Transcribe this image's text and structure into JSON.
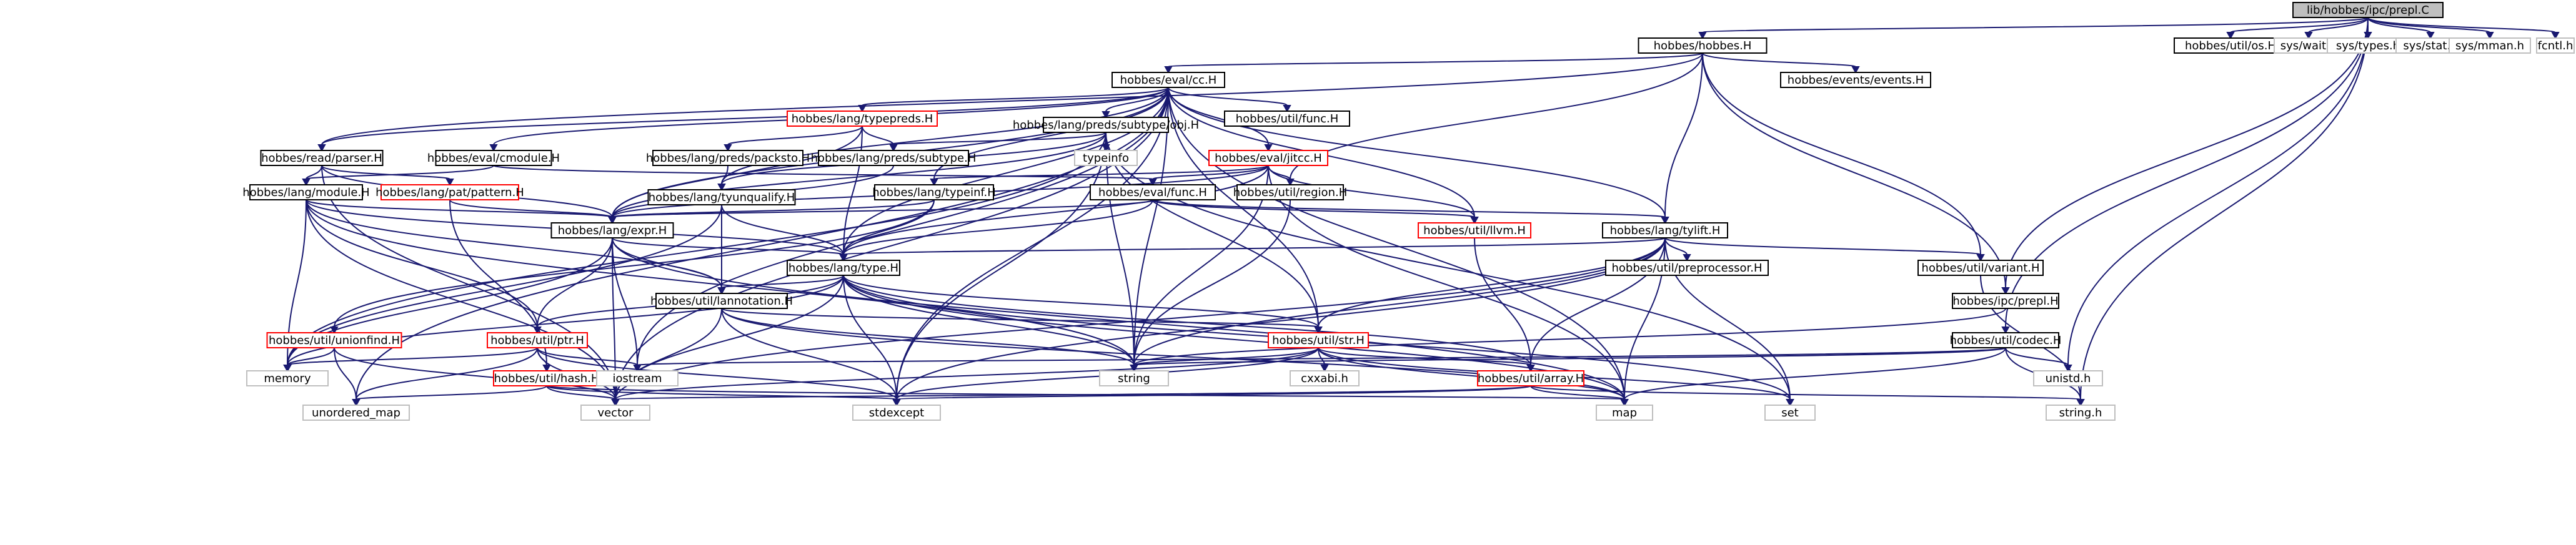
{
  "diagram": {
    "root": "lib/hobbes/ipc/prepl.C",
    "colors": {
      "edge": "#191970",
      "node_border_black": "#000000",
      "node_border_red": "#ff0000",
      "node_border_gray": "#bfbfbf",
      "root_fill": "#bfbfbf",
      "node_fill": "#ffffff"
    },
    "nodes": [
      {
        "id": "n0",
        "label": "lib/hobbes/ipc/prepl.C",
        "style": "root"
      },
      {
        "id": "n1",
        "label": "hobbes/hobbes.H",
        "style": "black"
      },
      {
        "id": "n2",
        "label": "hobbes/util/os.H",
        "style": "black"
      },
      {
        "id": "n3",
        "label": "sys/wait.h",
        "style": "gray"
      },
      {
        "id": "n4",
        "label": "sys/types.h",
        "style": "gray"
      },
      {
        "id": "n5",
        "label": "sys/stat.h",
        "style": "gray"
      },
      {
        "id": "n6",
        "label": "sys/mman.h",
        "style": "gray"
      },
      {
        "id": "n7",
        "label": "fcntl.h",
        "style": "gray"
      },
      {
        "id": "n8",
        "label": "hobbes/eval/cc.H",
        "style": "black"
      },
      {
        "id": "n9",
        "label": "hobbes/events/events.H",
        "style": "black"
      },
      {
        "id": "n10",
        "label": "hobbes/lang/typepreds.H",
        "style": "red"
      },
      {
        "id": "n11",
        "label": "hobbes/lang/preds/subtype/obj.H",
        "style": "black"
      },
      {
        "id": "n12",
        "label": "hobbes/util/func.H",
        "style": "black"
      },
      {
        "id": "n13",
        "label": "hobbes/read/parser.H",
        "style": "black"
      },
      {
        "id": "n14",
        "label": "hobbes/eval/cmodule.H",
        "style": "black"
      },
      {
        "id": "n15",
        "label": "hobbes/lang/preds/packsto.H",
        "style": "black"
      },
      {
        "id": "n16",
        "label": "hobbes/lang/preds/subtype.H",
        "style": "black"
      },
      {
        "id": "n17",
        "label": "typeinfo",
        "style": "gray"
      },
      {
        "id": "n18",
        "label": "hobbes/eval/jitcc.H",
        "style": "red"
      },
      {
        "id": "n19",
        "label": "hobbes/lang/module.H",
        "style": "black"
      },
      {
        "id": "n20",
        "label": "hobbes/lang/pat/pattern.H",
        "style": "red"
      },
      {
        "id": "n21",
        "label": "hobbes/lang/tyunqualify.H",
        "style": "black"
      },
      {
        "id": "n22",
        "label": "hobbes/lang/typeinf.H",
        "style": "black"
      },
      {
        "id": "n23",
        "label": "hobbes/eval/func.H",
        "style": "black"
      },
      {
        "id": "n24",
        "label": "hobbes/util/region.H",
        "style": "black"
      },
      {
        "id": "n25",
        "label": "hobbes/util/llvm.H",
        "style": "red"
      },
      {
        "id": "n26",
        "label": "hobbes/lang/expr.H",
        "style": "black"
      },
      {
        "id": "n27",
        "label": "hobbes/lang/tylift.H",
        "style": "black"
      },
      {
        "id": "n28",
        "label": "hobbes/lang/type.H",
        "style": "black"
      },
      {
        "id": "n29",
        "label": "hobbes/util/preprocessor.H",
        "style": "black"
      },
      {
        "id": "n30",
        "label": "hobbes/util/variant.H",
        "style": "black"
      },
      {
        "id": "n31",
        "label": "hobbes/util/lannotation.H",
        "style": "black"
      },
      {
        "id": "n32",
        "label": "hobbes/ipc/prepl.H",
        "style": "black"
      },
      {
        "id": "n33",
        "label": "hobbes/util/unionfind.H",
        "style": "red"
      },
      {
        "id": "n34",
        "label": "hobbes/util/ptr.H",
        "style": "red"
      },
      {
        "id": "n35",
        "label": "hobbes/util/str.H",
        "style": "red"
      },
      {
        "id": "n36",
        "label": "hobbes/util/codec.H",
        "style": "black"
      },
      {
        "id": "n37",
        "label": "hobbes/util/hash.H",
        "style": "red"
      },
      {
        "id": "n38",
        "label": "hobbes/util/array.H",
        "style": "red"
      },
      {
        "id": "n39",
        "label": "memory",
        "style": "gray"
      },
      {
        "id": "n40",
        "label": "iostream",
        "style": "gray"
      },
      {
        "id": "n41",
        "label": "string",
        "style": "gray"
      },
      {
        "id": "n42",
        "label": "cxxabi.h",
        "style": "gray"
      },
      {
        "id": "n43",
        "label": "unistd.h",
        "style": "gray"
      },
      {
        "id": "n44",
        "label": "unordered_map",
        "style": "gray"
      },
      {
        "id": "n45",
        "label": "vector",
        "style": "gray"
      },
      {
        "id": "n46",
        "label": "stdexcept",
        "style": "gray"
      },
      {
        "id": "n47",
        "label": "map",
        "style": "gray"
      },
      {
        "id": "n48",
        "label": "set",
        "style": "gray"
      },
      {
        "id": "n49",
        "label": "string.h",
        "style": "gray"
      }
    ],
    "edges": [
      [
        "n0",
        "n1"
      ],
      [
        "n0",
        "n2"
      ],
      [
        "n0",
        "n3"
      ],
      [
        "n0",
        "n4"
      ],
      [
        "n0",
        "n5"
      ],
      [
        "n0",
        "n6"
      ],
      [
        "n0",
        "n7"
      ],
      [
        "n0",
        "n32"
      ],
      [
        "n0",
        "n36"
      ],
      [
        "n0",
        "n43"
      ],
      [
        "n0",
        "n49"
      ],
      [
        "n1",
        "n8"
      ],
      [
        "n1",
        "n9"
      ],
      [
        "n1",
        "n13"
      ],
      [
        "n1",
        "n24"
      ],
      [
        "n1",
        "n27"
      ],
      [
        "n1",
        "n30"
      ],
      [
        "n1",
        "n32"
      ],
      [
        "n8",
        "n10"
      ],
      [
        "n8",
        "n11"
      ],
      [
        "n8",
        "n12"
      ],
      [
        "n8",
        "n13"
      ],
      [
        "n8",
        "n14"
      ],
      [
        "n8",
        "n18"
      ],
      [
        "n8",
        "n22"
      ],
      [
        "n8",
        "n25"
      ],
      [
        "n8",
        "n26"
      ],
      [
        "n8",
        "n27"
      ],
      [
        "n8",
        "n28"
      ],
      [
        "n8",
        "n35"
      ],
      [
        "n8",
        "n40"
      ],
      [
        "n8",
        "n41"
      ],
      [
        "n8",
        "n44"
      ],
      [
        "n8",
        "n45"
      ],
      [
        "n8",
        "n46"
      ],
      [
        "n8",
        "n47"
      ],
      [
        "n8",
        "n21"
      ],
      [
        "n10",
        "n15"
      ],
      [
        "n10",
        "n16"
      ],
      [
        "n10",
        "n26"
      ],
      [
        "n10",
        "n28"
      ],
      [
        "n11",
        "n16"
      ],
      [
        "n11",
        "n17"
      ],
      [
        "n11",
        "n21"
      ],
      [
        "n11",
        "n26"
      ],
      [
        "n11",
        "n41"
      ],
      [
        "n11",
        "n35"
      ],
      [
        "n11",
        "n46"
      ],
      [
        "n11",
        "n39"
      ],
      [
        "n11",
        "n48"
      ],
      [
        "n13",
        "n19"
      ],
      [
        "n13",
        "n20"
      ],
      [
        "n13",
        "n26"
      ],
      [
        "n13",
        "n45"
      ],
      [
        "n14",
        "n19"
      ],
      [
        "n14",
        "n23"
      ],
      [
        "n15",
        "n21"
      ],
      [
        "n16",
        "n26"
      ],
      [
        "n18",
        "n22"
      ],
      [
        "n18",
        "n23"
      ],
      [
        "n18",
        "n24"
      ],
      [
        "n18",
        "n25"
      ],
      [
        "n18",
        "n26"
      ],
      [
        "n18",
        "n28"
      ],
      [
        "n18",
        "n41"
      ],
      [
        "n18",
        "n47"
      ],
      [
        "n19",
        "n26"
      ],
      [
        "n19",
        "n28"
      ],
      [
        "n19",
        "n31"
      ],
      [
        "n19",
        "n34"
      ],
      [
        "n19",
        "n39"
      ],
      [
        "n19",
        "n45"
      ],
      [
        "n19",
        "n41"
      ],
      [
        "n20",
        "n26"
      ],
      [
        "n20",
        "n37"
      ],
      [
        "n21",
        "n28"
      ],
      [
        "n21",
        "n31"
      ],
      [
        "n21",
        "n39"
      ],
      [
        "n22",
        "n26"
      ],
      [
        "n22",
        "n28"
      ],
      [
        "n22",
        "n33"
      ],
      [
        "n23",
        "n26"
      ],
      [
        "n23",
        "n27"
      ],
      [
        "n23",
        "n28"
      ],
      [
        "n23",
        "n25"
      ],
      [
        "n24",
        "n41"
      ],
      [
        "n25",
        "n38"
      ],
      [
        "n26",
        "n28"
      ],
      [
        "n26",
        "n31"
      ],
      [
        "n26",
        "n34"
      ],
      [
        "n26",
        "n39"
      ],
      [
        "n26",
        "n40"
      ],
      [
        "n26",
        "n45"
      ],
      [
        "n26",
        "n47"
      ],
      [
        "n27",
        "n28"
      ],
      [
        "n27",
        "n29"
      ],
      [
        "n27",
        "n30"
      ],
      [
        "n27",
        "n35"
      ],
      [
        "n27",
        "n38"
      ],
      [
        "n27",
        "n41"
      ],
      [
        "n27",
        "n45"
      ],
      [
        "n27",
        "n46"
      ],
      [
        "n27",
        "n47"
      ],
      [
        "n27",
        "n48"
      ],
      [
        "n28",
        "n31"
      ],
      [
        "n28",
        "n34"
      ],
      [
        "n28",
        "n35"
      ],
      [
        "n28",
        "n38"
      ],
      [
        "n28",
        "n39"
      ],
      [
        "n28",
        "n41"
      ],
      [
        "n28",
        "n45"
      ],
      [
        "n28",
        "n46"
      ],
      [
        "n28",
        "n47"
      ],
      [
        "n28",
        "n48"
      ],
      [
        "n30",
        "n49"
      ],
      [
        "n31",
        "n35"
      ],
      [
        "n31",
        "n41"
      ],
      [
        "n31",
        "n45"
      ],
      [
        "n31",
        "n46"
      ],
      [
        "n31",
        "n47"
      ],
      [
        "n32",
        "n41"
      ],
      [
        "n33",
        "n39"
      ],
      [
        "n33",
        "n44"
      ],
      [
        "n33",
        "n45"
      ],
      [
        "n34",
        "n37"
      ],
      [
        "n34",
        "n39"
      ],
      [
        "n34",
        "n40"
      ],
      [
        "n34",
        "n44"
      ],
      [
        "n34",
        "n45"
      ],
      [
        "n34",
        "n46"
      ],
      [
        "n35",
        "n38"
      ],
      [
        "n35",
        "n41"
      ],
      [
        "n35",
        "n42"
      ],
      [
        "n35",
        "n45"
      ],
      [
        "n35",
        "n46"
      ],
      [
        "n35",
        "n47"
      ],
      [
        "n35",
        "n48"
      ],
      [
        "n36",
        "n40"
      ],
      [
        "n36",
        "n41"
      ],
      [
        "n36",
        "n43"
      ],
      [
        "n36",
        "n47"
      ],
      [
        "n36",
        "n49"
      ],
      [
        "n37",
        "n44"
      ],
      [
        "n37",
        "n45"
      ],
      [
        "n37",
        "n46"
      ],
      [
        "n37",
        "n47"
      ],
      [
        "n38",
        "n45"
      ],
      [
        "n38",
        "n46"
      ],
      [
        "n38",
        "n47"
      ],
      [
        "n38",
        "n49"
      ]
    ]
  }
}
